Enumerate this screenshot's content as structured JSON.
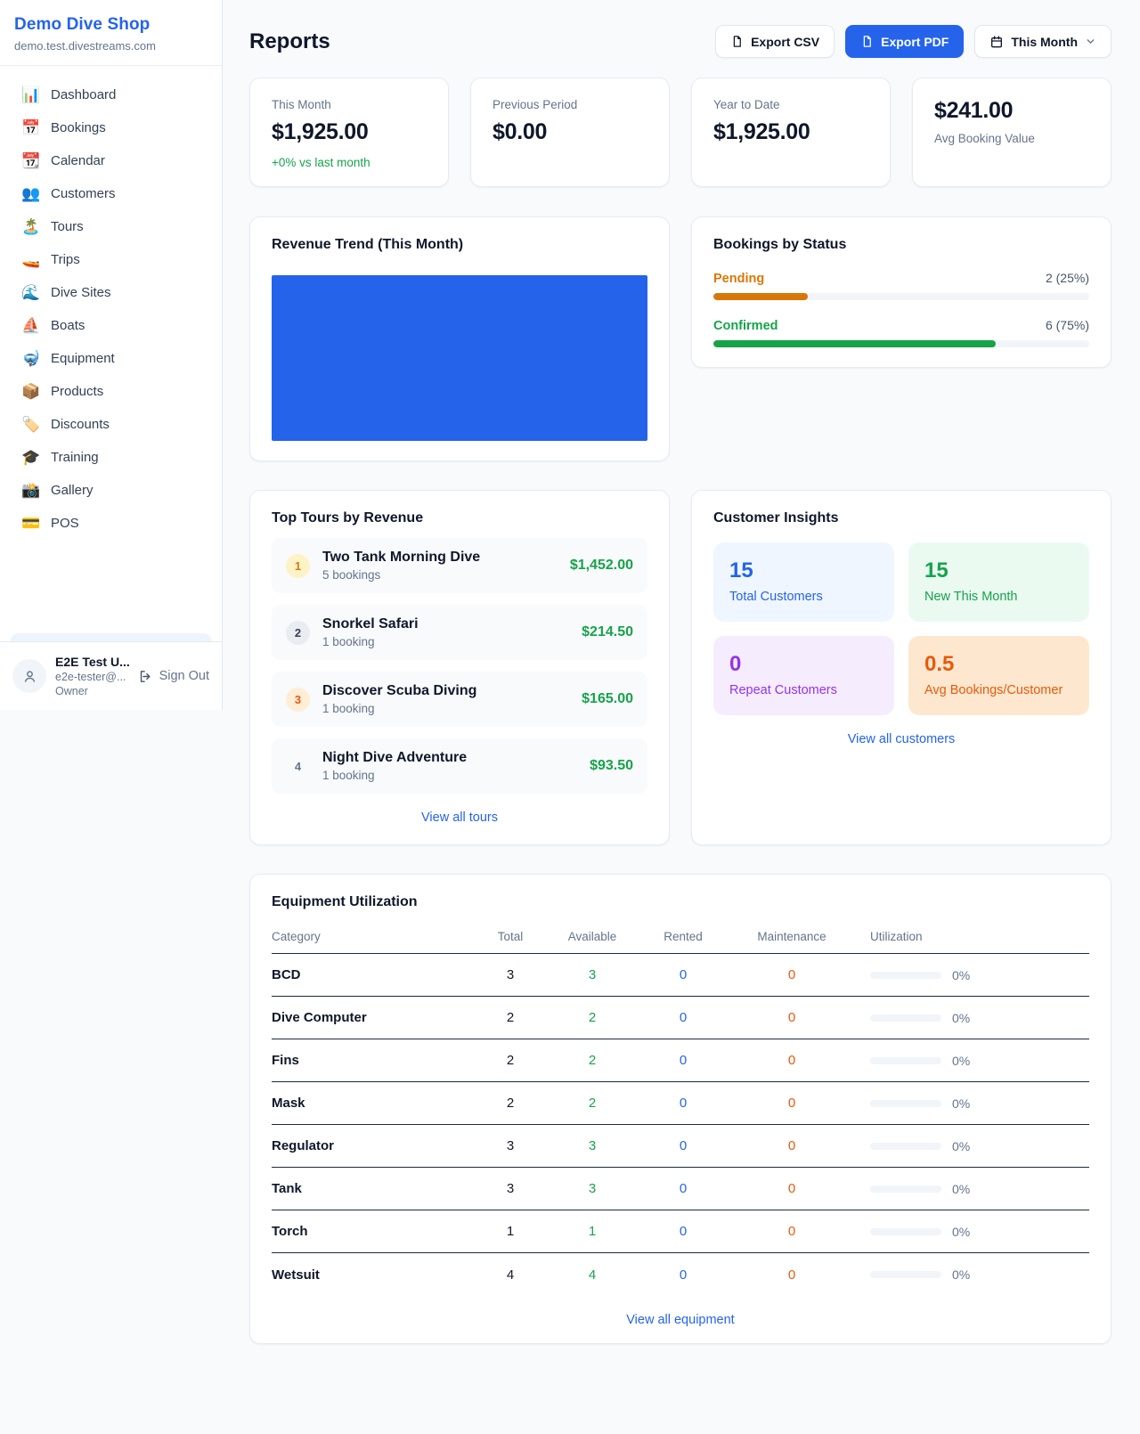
{
  "sidebar": {
    "title": "Demo Dive Shop",
    "subdomain": "demo.test.divestreams.com",
    "items": [
      {
        "icon": "📊",
        "label": "Dashboard"
      },
      {
        "icon": "📅",
        "label": "Bookings"
      },
      {
        "icon": "📆",
        "label": "Calendar"
      },
      {
        "icon": "👥",
        "label": "Customers"
      },
      {
        "icon": "🏝️",
        "label": "Tours"
      },
      {
        "icon": "🚤",
        "label": "Trips"
      },
      {
        "icon": "🌊",
        "label": "Dive Sites"
      },
      {
        "icon": "⛵",
        "label": "Boats"
      },
      {
        "icon": "🤿",
        "label": "Equipment"
      },
      {
        "icon": "📦",
        "label": "Products"
      },
      {
        "icon": "🏷️",
        "label": "Discounts"
      },
      {
        "icon": "🎓",
        "label": "Training"
      },
      {
        "icon": "📸",
        "label": "Gallery"
      },
      {
        "icon": "💳",
        "label": "POS"
      }
    ],
    "user": {
      "name": "E2E Test U...",
      "email": "e2e-tester@...",
      "role": "Owner",
      "sign_out": "Sign Out"
    }
  },
  "header": {
    "title": "Reports",
    "export_csv": "Export CSV",
    "export_pdf": "Export PDF",
    "period": "This Month"
  },
  "stats": [
    {
      "label": "This Month",
      "value": "$1,925.00",
      "delta": "+0% vs last month"
    },
    {
      "label": "Previous Period",
      "value": "$0.00"
    },
    {
      "label": "Year to Date",
      "value": "$1,925.00"
    },
    {
      "label": "Avg Booking Value",
      "value": "$241.00"
    }
  ],
  "revenue_trend": {
    "title": "Revenue Trend (This Month)",
    "bar_color": "#2563eb",
    "fill_pct": 100
  },
  "bookings_by_status": {
    "title": "Bookings by Status",
    "statuses": [
      {
        "label": "Pending",
        "value": "2 (25%)",
        "count": 2,
        "pct": 25,
        "color": "#d97706"
      },
      {
        "label": "Confirmed",
        "value": "6 (75%)",
        "count": 6,
        "pct": 75,
        "color": "#16a34a"
      }
    ]
  },
  "top_tours": {
    "title": "Top Tours by Revenue",
    "view_all": "View all tours",
    "tours": [
      {
        "rank": "1",
        "name": "Two Tank Morning Dive",
        "bookings": "5 bookings",
        "revenue": "$1,452.00"
      },
      {
        "rank": "2",
        "name": "Snorkel Safari",
        "bookings": "1 booking",
        "revenue": "$214.50"
      },
      {
        "rank": "3",
        "name": "Discover Scuba Diving",
        "bookings": "1 booking",
        "revenue": "$165.00"
      },
      {
        "rank": "4",
        "name": "Night Dive Adventure",
        "bookings": "1 booking",
        "revenue": "$93.50"
      }
    ]
  },
  "customer_insights": {
    "title": "Customer Insights",
    "view_all": "View all customers",
    "tiles": [
      {
        "value": "15",
        "label": "Total Customers",
        "color": "#2563eb"
      },
      {
        "value": "15",
        "label": "New This Month",
        "color": "#16a34a"
      },
      {
        "value": "0",
        "label": "Repeat Customers",
        "color": "#9333ea"
      },
      {
        "value": "0.5",
        "label": "Avg Bookings/Customer",
        "color": "#ea580c"
      }
    ]
  },
  "equipment": {
    "title": "Equipment Utilization",
    "view_all": "View all equipment",
    "columns": {
      "category": "Category",
      "total": "Total",
      "available": "Available",
      "rented": "Rented",
      "maintenance": "Maintenance",
      "utilization": "Utilization"
    },
    "rows": [
      {
        "category": "BCD",
        "total": "3",
        "available": "3",
        "rented": "0",
        "maintenance": "0",
        "utilization_pct": 0,
        "utilization_label": "0%"
      },
      {
        "category": "Dive Computer",
        "total": "2",
        "available": "2",
        "rented": "0",
        "maintenance": "0",
        "utilization_pct": 0,
        "utilization_label": "0%"
      },
      {
        "category": "Fins",
        "total": "2",
        "available": "2",
        "rented": "0",
        "maintenance": "0",
        "utilization_pct": 0,
        "utilization_label": "0%"
      },
      {
        "category": "Mask",
        "total": "2",
        "available": "2",
        "rented": "0",
        "maintenance": "0",
        "utilization_pct": 0,
        "utilization_label": "0%"
      },
      {
        "category": "Regulator",
        "total": "3",
        "available": "3",
        "rented": "0",
        "maintenance": "0",
        "utilization_pct": 0,
        "utilization_label": "0%"
      },
      {
        "category": "Tank",
        "total": "3",
        "available": "3",
        "rented": "0",
        "maintenance": "0",
        "utilization_pct": 0,
        "utilization_label": "0%"
      },
      {
        "category": "Torch",
        "total": "1",
        "available": "1",
        "rented": "0",
        "maintenance": "0",
        "utilization_pct": 0,
        "utilization_label": "0%"
      },
      {
        "category": "Wetsuit",
        "total": "4",
        "available": "4",
        "rented": "0",
        "maintenance": "0",
        "utilization_pct": 0,
        "utilization_label": "0%"
      }
    ]
  }
}
